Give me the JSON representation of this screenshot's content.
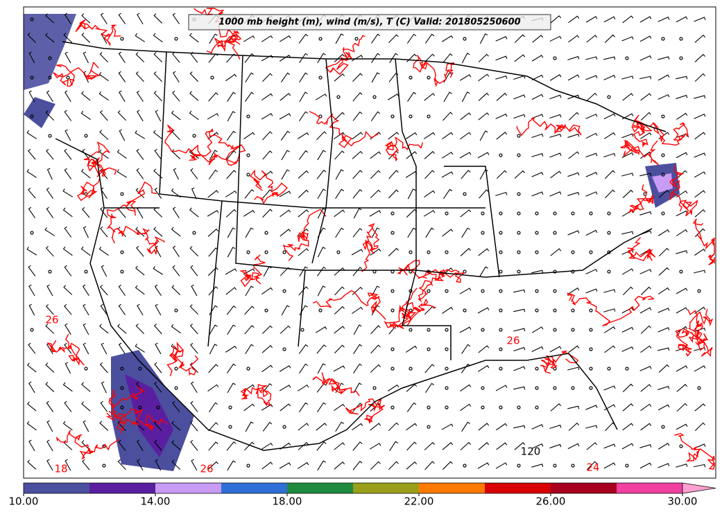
{
  "title": "1000 mb height (m), wind (m/s), T (C) Valid: 201805250600",
  "colorbar": {
    "boundaries": [
      10,
      12,
      14,
      16,
      18,
      20,
      22,
      24,
      26,
      28,
      30
    ],
    "colors": [
      "#4b4f9e",
      "#5a1fa0",
      "#c89bf5",
      "#2f6fd8",
      "#1e8a3e",
      "#9aa01a",
      "#ff7a00",
      "#d80000",
      "#a8001e",
      "#f040a0"
    ],
    "extend_color": "#ffa0d0",
    "ticks": [
      {
        "value": 10,
        "label": "10.00"
      },
      {
        "value": 14,
        "label": "14.00"
      },
      {
        "value": 18,
        "label": "18.00"
      },
      {
        "value": 22,
        "label": "22.00"
      },
      {
        "value": 26,
        "label": "26.00"
      },
      {
        "value": 30,
        "label": "30.00"
      }
    ]
  },
  "contour_labels": [
    "18",
    "26",
    "24",
    "120",
    "26",
    "26"
  ]
}
